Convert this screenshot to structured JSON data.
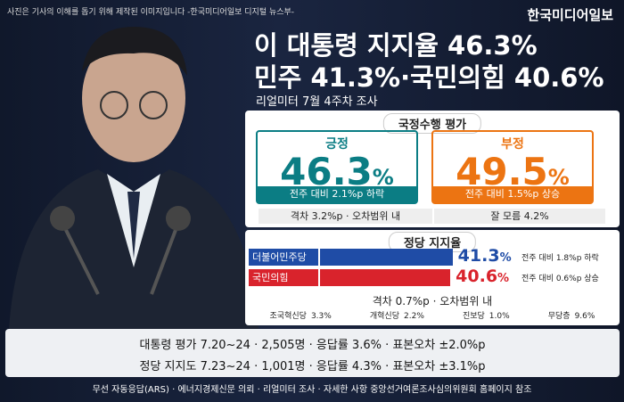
{
  "header": {
    "disclaimer": "사진은 기사의 이해를 돕기 위해 제작된 이미지입니다 -한국미디어일보 디지털 뉴스부-",
    "brand": "한국미디어일보",
    "headline": [
      "이 대통령 지지율 46.3%",
      "민주 41.3%·국민의힘 40.6%"
    ],
    "subhead": "리얼미터 7월 4주차 조사"
  },
  "approval": {
    "title": "국정수행 평가",
    "items": [
      {
        "label": "긍정",
        "value": 46.3,
        "unit": "%",
        "change": "전주 대비 2.1%p 하락",
        "color": "#0b7d84"
      },
      {
        "label": "부정",
        "value": 49.5,
        "unit": "%",
        "change": "전주 대비 1.5%p 상승",
        "color": "#ec7412"
      }
    ],
    "gap": "격차 3.2%p · 오차범위 내",
    "unknown": "잘 모름 4.2%"
  },
  "party": {
    "title": "정당 지지율",
    "items": [
      {
        "name": "더불어민주당",
        "value": 41.3,
        "unit": "%",
        "change": "전주 대비 1.8%p 하락",
        "color": "#1f4ca6"
      },
      {
        "name": "국민의힘",
        "value": 40.6,
        "unit": "%",
        "change": "전주 대비 0.6%p 상승",
        "color": "#d9232c"
      }
    ],
    "gap": "격차 0.7%p · 오차범위 내",
    "others": [
      {
        "name": "조국혁신당",
        "value": "3.3%"
      },
      {
        "name": "개혁신당",
        "value": "2.2%"
      },
      {
        "name": "진보당",
        "value": "1.0%"
      },
      {
        "name": "무당층",
        "value": "9.6%"
      }
    ]
  },
  "survey": {
    "lines": [
      "대통령 평가 7.20~24 · 2,505명 · 응답률 3.6% · 표본오차 ±2.0%p",
      "정당 지지도 7.23~24 · 1,001명 · 응답률 4.3% · 표본오차 ±3.1%p"
    ],
    "note": "무선 자동응답(ARS) · 에너지경제신문 의뢰 · 리얼미터 조사 · 자세한 사항 중앙선거여론조사심의위원회 홈페이지 참조"
  }
}
